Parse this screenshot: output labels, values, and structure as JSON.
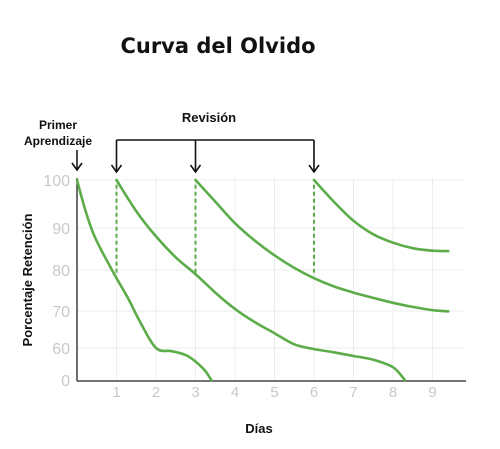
{
  "colors": {
    "curve": "#5cad4a",
    "grid": "#ececec",
    "axis": "#222222",
    "tick_text": "#c8c8c8",
    "arrow": "#111111"
  },
  "chart_data": {
    "type": "line",
    "title": "Curva del Olvido",
    "xlabel": "Días",
    "ylabel": "Porcentaje Retención",
    "xlim": [
      0,
      9.9
    ],
    "x_ticks": [
      "1",
      "2",
      "3",
      "4",
      "5",
      "6",
      "7",
      "8",
      "9"
    ],
    "y_ticks": [
      "0",
      "60",
      "70",
      "80",
      "90",
      "100"
    ],
    "y_scale": "non-linear",
    "grid": true,
    "annotations": {
      "first_learning": "Primer Aprendizaje",
      "review": "Revisión",
      "review_days": [
        1,
        3,
        6
      ]
    },
    "series": [
      {
        "x": [
          0,
          0.2,
          0.4,
          0.6,
          0.8,
          1.0,
          1.3,
          1.6,
          2.0,
          2.4,
          2.8,
          3.2,
          3.4
        ],
        "y": [
          100,
          94,
          89,
          85,
          81.5,
          78,
          73,
          67,
          60,
          54,
          45,
          21,
          0
        ]
      },
      {
        "x": [
          1,
          1.5,
          2,
          2.5,
          3,
          3.5,
          4,
          4.5,
          5,
          5.5,
          6,
          6.5,
          7,
          7.5,
          8,
          8.3
        ],
        "y": [
          100,
          93.5,
          88,
          83,
          79,
          74.5,
          70.5,
          67,
          64,
          61,
          58,
          52,
          45,
          38,
          24,
          0
        ]
      },
      {
        "x": [
          3,
          3.5,
          4,
          4.5,
          5,
          5.5,
          6,
          6.5,
          7,
          7.5,
          8,
          8.5,
          9,
          9.4
        ],
        "y": [
          100,
          95.5,
          91,
          87,
          83.5,
          80.5,
          78,
          76,
          74.5,
          73.2,
          72,
          71,
          70.2,
          69.9
        ]
      },
      {
        "x": [
          6,
          6.5,
          7,
          7.5,
          8,
          8.5,
          9,
          9.4
        ],
        "y": [
          100,
          95.5,
          91.5,
          88.5,
          86.5,
          85.2,
          84.6,
          84.5
        ]
      }
    ]
  }
}
